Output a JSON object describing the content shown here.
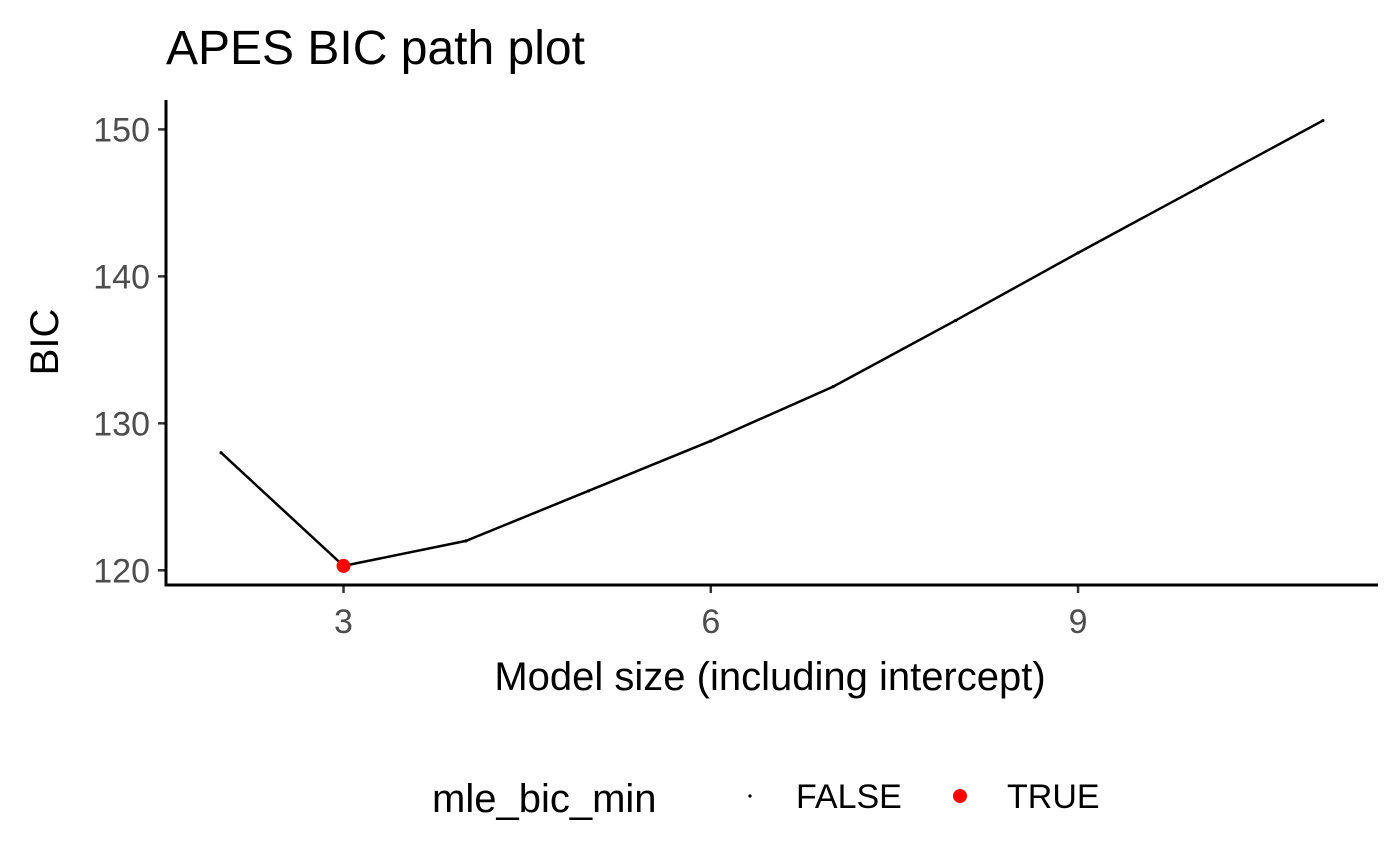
{
  "chart_data": {
    "type": "line",
    "title": "APES BIC path plot",
    "xlabel": "Model size (including intercept)",
    "ylabel": "BIC",
    "x": [
      2,
      3,
      4,
      5,
      6,
      7,
      8,
      9,
      10,
      11
    ],
    "y": [
      128.0,
      120.3,
      122.0,
      125.4,
      128.8,
      132.5,
      137.0,
      141.6,
      146.1,
      150.6
    ],
    "highlight": [
      false,
      true,
      false,
      false,
      false,
      false,
      false,
      false,
      false,
      false
    ],
    "xlim": [
      1.55,
      11.45
    ],
    "ylim": [
      119.0,
      152.0
    ],
    "xticks": [
      3,
      6,
      9
    ],
    "yticks": [
      120,
      130,
      140,
      150
    ],
    "grid": false,
    "legend": {
      "title": "mle_bic_min",
      "position": "bottom",
      "items": [
        {
          "label": "FALSE",
          "color": "#000000"
        },
        {
          "label": "TRUE",
          "color": "#ff0000"
        }
      ]
    },
    "colors": {
      "line": "#000000",
      "false_point": "#000000",
      "true_point": "#ff0000"
    }
  }
}
